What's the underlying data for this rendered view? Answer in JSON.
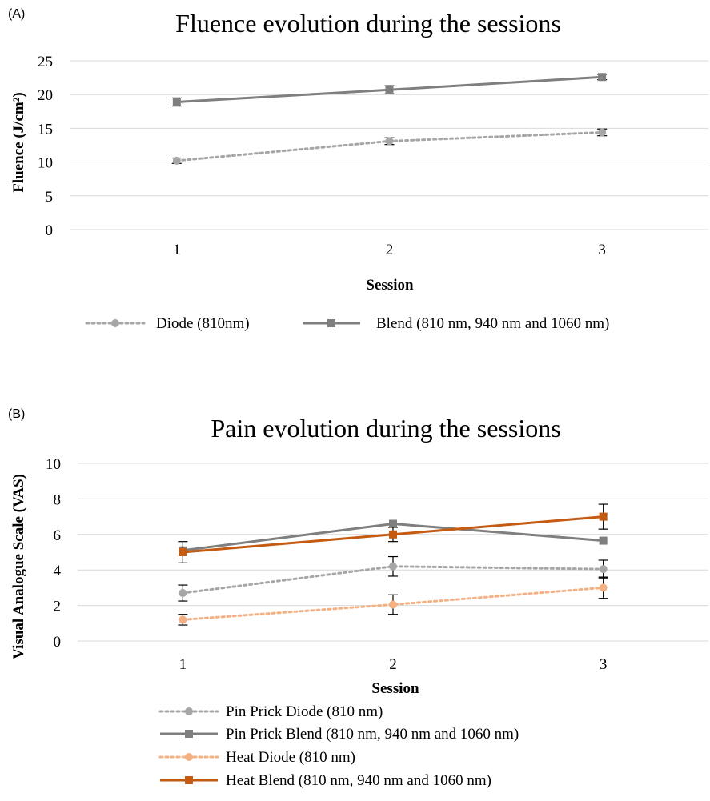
{
  "chart_data": [
    {
      "type": "line",
      "panel_label": "(A)",
      "title": "Fluence evolution during the sessions",
      "xlabel": "Session",
      "ylabel": "Fluence (J/cm²)",
      "categories": [
        "1",
        "2",
        "3"
      ],
      "ylim": [
        0,
        25
      ],
      "yticks": [
        "0",
        "5",
        "10",
        "15",
        "20",
        "25"
      ],
      "grid": true,
      "legend_position": "bottom",
      "series": [
        {
          "name": "Diode (810nm)",
          "values": [
            10.2,
            13.1,
            14.4
          ],
          "errors": [
            0.4,
            0.5,
            0.5
          ],
          "color": "#a6a6a6",
          "dash": "dotted",
          "marker": "circle"
        },
        {
          "name": "Blend (810 nm, 940 nm and 1060 nm)",
          "values": [
            18.9,
            20.7,
            22.6
          ],
          "errors": [
            0.6,
            0.6,
            0.4
          ],
          "color": "#7f7f7f",
          "dash": "solid",
          "marker": "square"
        }
      ]
    },
    {
      "type": "line",
      "panel_label": "(B)",
      "title": "Pain evolution during the sessions",
      "xlabel": "Session",
      "ylabel": "Visual Analogue Scale (VAS)",
      "categories": [
        "1",
        "2",
        "3"
      ],
      "ylim": [
        0,
        10
      ],
      "yticks": [
        "0",
        "2",
        "4",
        "6",
        "8",
        "10"
      ],
      "grid": true,
      "legend_position": "bottom",
      "series": [
        {
          "name": "Pin Prick Diode (810 nm)",
          "values": [
            2.7,
            4.2,
            4.05
          ],
          "errors": [
            0.45,
            0.55,
            0.5
          ],
          "color": "#a6a6a6",
          "dash": "dotted",
          "marker": "circle"
        },
        {
          "name": "Pin Prick Blend (810 nm, 940 nm and 1060 nm)",
          "values": [
            5.1,
            6.6,
            5.65
          ],
          "errors": [
            0,
            0,
            0
          ],
          "color": "#7f7f7f",
          "dash": "solid",
          "marker": "square"
        },
        {
          "name": "Heat Diode (810 nm)",
          "values": [
            1.2,
            2.05,
            3.0
          ],
          "errors": [
            0.3,
            0.55,
            0.6
          ],
          "color": "#f4b183",
          "dash": "dotted",
          "marker": "circle"
        },
        {
          "name": "Heat Blend (810 nm, 940 nm and 1060 nm)",
          "values": [
            5.0,
            6.0,
            7.0
          ],
          "errors": [
            0.6,
            0.4,
            0.7
          ],
          "color": "#c55a11",
          "dash": "solid",
          "marker": "square"
        }
      ]
    }
  ]
}
